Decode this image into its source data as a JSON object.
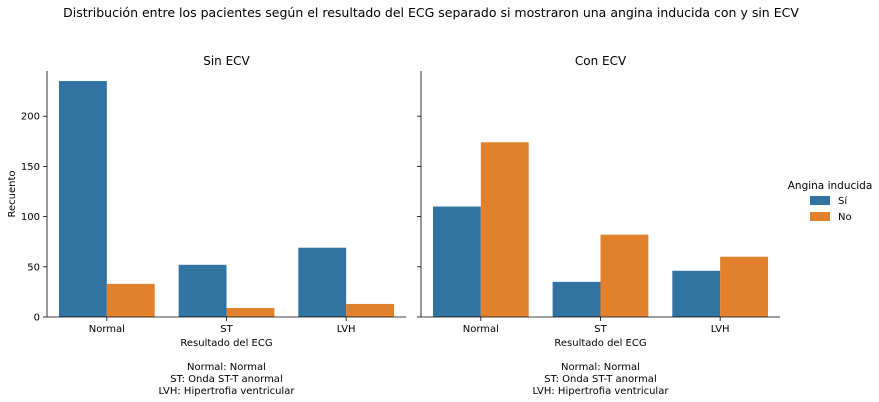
{
  "figure": {
    "title": "Distribución entre los pacientes según el resultado del ECG separado si mostraron una angina inducida con y sin ECV"
  },
  "legend": {
    "title": "Angina inducida",
    "entries": [
      {
        "label": "Sí",
        "color": "#3274a1"
      },
      {
        "label": "No",
        "color": "#e1812c"
      }
    ]
  },
  "chart_data": [
    {
      "type": "bar",
      "title": "Sin ECV",
      "xlabel": "Resultado del ECG",
      "ylabel": "Recuento",
      "categories": [
        "Normal",
        "ST",
        "LVH"
      ],
      "series": [
        {
          "name": "Sí",
          "values": [
            235,
            52,
            69
          ]
        },
        {
          "name": "No",
          "values": [
            33,
            9,
            13
          ]
        }
      ],
      "ylim": [
        0,
        245
      ],
      "yticks": [
        0,
        50,
        100,
        150,
        200
      ],
      "grid": false,
      "legend": "right",
      "note_lines": [
        "Normal: Normal",
        "ST: Onda ST-T anormal",
        "LVH: Hipertrofia ventricular"
      ]
    },
    {
      "type": "bar",
      "title": "Con ECV",
      "xlabel": "Resultado del ECG",
      "ylabel": "",
      "categories": [
        "Normal",
        "ST",
        "LVH"
      ],
      "series": [
        {
          "name": "Sí",
          "values": [
            110,
            35,
            46
          ]
        },
        {
          "name": "No",
          "values": [
            174,
            82,
            60
          ]
        }
      ],
      "ylim": [
        0,
        245
      ],
      "yticks": [
        0,
        50,
        100,
        150,
        200
      ],
      "grid": false,
      "legend": "right",
      "note_lines": [
        "Normal: Normal",
        "ST: Onda ST-T anormal",
        "LVH: Hipertrofia ventricular"
      ]
    }
  ]
}
